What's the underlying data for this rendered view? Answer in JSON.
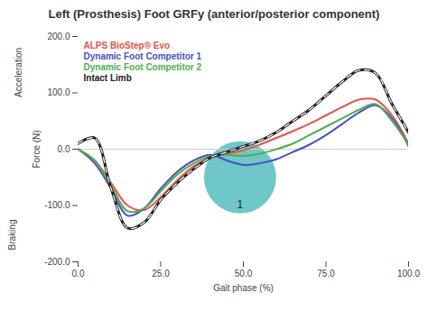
{
  "chart_data": {
    "type": "line",
    "title": "Left (Prosthesis) Foot GRFy (anterior/posterior component)",
    "x_label": "Gait phase (%)",
    "y_label": "Force (N)",
    "direction_labels": [
      "Acceleration",
      "Braking"
    ],
    "annotations": [
      {
        "text": "1",
        "x": 49,
        "y": -50
      }
    ],
    "x": [
      0,
      5,
      10,
      15,
      20,
      25,
      30,
      35,
      40,
      45,
      50,
      55,
      60,
      65,
      70,
      75,
      80,
      85,
      90,
      95,
      100
    ],
    "series": [
      {
        "name": "ALPS BioStep® Evo",
        "color": "#e8524a",
        "line_style": "solid",
        "values": [
          0,
          -20,
          -60,
          -100,
          -108,
          -85,
          -55,
          -30,
          -15,
          -8,
          -2,
          8,
          20,
          32,
          45,
          60,
          75,
          88,
          88,
          60,
          10
        ]
      },
      {
        "name": "Dynamic Foot Competitor 1",
        "color": "#4a4fc4",
        "line_style": "solid",
        "values": [
          0,
          -25,
          -70,
          -118,
          -105,
          -70,
          -40,
          -20,
          -10,
          -20,
          -28,
          -25,
          -18,
          -5,
          8,
          25,
          45,
          65,
          78,
          55,
          5
        ]
      },
      {
        "name": "Dynamic Foot Competitor 2",
        "color": "#4fae4f",
        "line_style": "solid",
        "values": [
          0,
          -20,
          -65,
          -110,
          -105,
          -75,
          -45,
          -25,
          -12,
          -10,
          -12,
          -8,
          0,
          10,
          25,
          40,
          55,
          70,
          80,
          50,
          8
        ]
      },
      {
        "name": "Intact Limb",
        "color": "#222222",
        "line_style": "dashed",
        "values": [
          10,
          20,
          -70,
          -140,
          -130,
          -90,
          -60,
          -35,
          -15,
          -5,
          5,
          15,
          30,
          50,
          70,
          95,
          120,
          140,
          135,
          80,
          30
        ]
      }
    ],
    "xlim": [
      0,
      100
    ],
    "xticks": [
      {
        "value": 0,
        "label": "0.0"
      },
      {
        "value": 25,
        "label": "25.0"
      },
      {
        "value": 50,
        "label": "50.0"
      },
      {
        "value": 75,
        "label": "75.0"
      },
      {
        "value": 100,
        "label": "100.0"
      }
    ],
    "ylim": [
      -200,
      200
    ],
    "yticks": [
      {
        "value": -200,
        "label": "-200.0"
      },
      {
        "value": -100,
        "label": "-100.0"
      },
      {
        "value": 0,
        "label": "0.0"
      },
      {
        "value": 100,
        "label": "100.0"
      },
      {
        "value": 200,
        "label": "200.0"
      }
    ],
    "grid": false,
    "legend": "top-left"
  }
}
